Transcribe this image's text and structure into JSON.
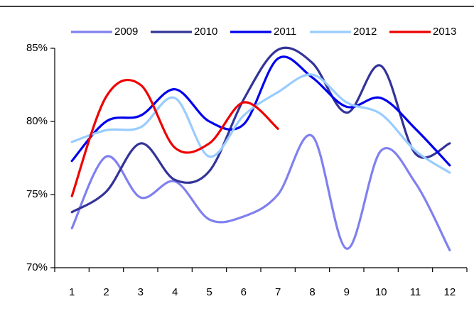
{
  "chart_data": {
    "type": "line",
    "categories": [
      "1",
      "2",
      "3",
      "4",
      "5",
      "6",
      "7",
      "8",
      "9",
      "10",
      "11",
      "12"
    ],
    "series": [
      {
        "name": "2009",
        "color": "#8080f0",
        "values": [
          72.7,
          77.6,
          74.8,
          75.9,
          73.3,
          73.5,
          75.0,
          79.0,
          71.3,
          78.0,
          75.8,
          71.2
        ]
      },
      {
        "name": "2010",
        "color": "#333399",
        "values": [
          73.8,
          75.2,
          78.5,
          76.0,
          76.6,
          81.5,
          84.9,
          84.0,
          80.6,
          83.8,
          77.8,
          78.5
        ]
      },
      {
        "name": "2011",
        "color": "#0000ee",
        "values": [
          77.3,
          80.0,
          80.4,
          82.2,
          80.0,
          79.8,
          84.3,
          83.0,
          81.0,
          81.6,
          79.5,
          77.0
        ]
      },
      {
        "name": "2012",
        "color": "#99ccff",
        "values": [
          78.6,
          79.4,
          79.6,
          81.6,
          77.6,
          80.4,
          82.0,
          83.2,
          81.3,
          80.5,
          78.0,
          76.5
        ]
      },
      {
        "name": "2013",
        "color": "#ee0000",
        "values": [
          74.9,
          81.7,
          82.5,
          78.2,
          78.5,
          81.3,
          79.5,
          null,
          null,
          null,
          null,
          null
        ]
      }
    ],
    "ylim": [
      70,
      85
    ],
    "yticks": [
      {
        "value": 70,
        "label": "70%"
      },
      {
        "value": 75,
        "label": "75%"
      },
      {
        "value": 80,
        "label": "80%"
      },
      {
        "value": 85,
        "label": "85%"
      }
    ],
    "grid": false,
    "legend": "top",
    "smooth": true
  }
}
